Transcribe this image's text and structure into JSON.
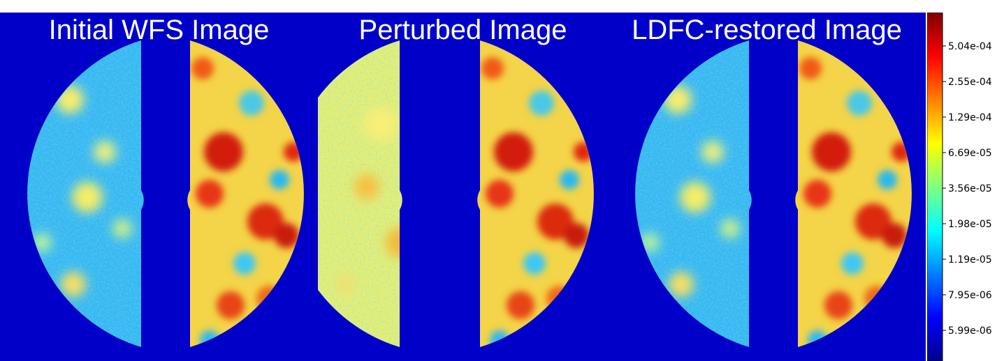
{
  "panels": [
    {
      "title": "Initial WFS Image"
    },
    {
      "title": "Perturbed Image"
    },
    {
      "title": "LDFC-restored Image"
    }
  ],
  "colorbar": {
    "colormap": "jet",
    "scale": "log",
    "tick_labels": [
      "5.04e-04",
      "2.55e-04",
      "1.29e-04",
      "6.69e-05",
      "3.56e-05",
      "1.98e-05",
      "1.19e-05",
      "7.95e-06",
      "5.99e-06"
    ]
  },
  "colors": {
    "background": "#0000c8",
    "divider": "#ffffff"
  }
}
